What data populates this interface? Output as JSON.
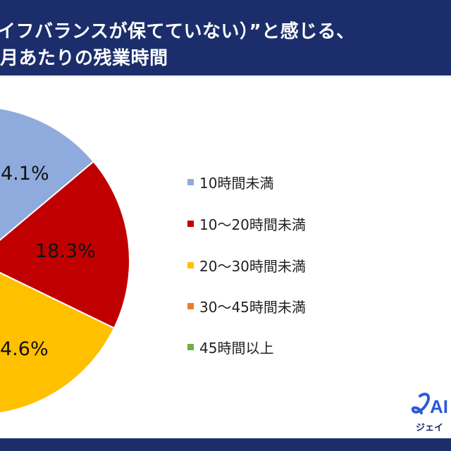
{
  "header": {
    "title_line1": "イフバランスが保てていない）”と感じる、",
    "title_line2": "月あたりの残業時間"
  },
  "chart_data": {
    "type": "pie",
    "visible_slices": [
      {
        "category": "10時間未満",
        "label": "4.1%",
        "color": "#8faadc"
      },
      {
        "category": "10～20時間未満",
        "label": "18.3%",
        "value": 18.3,
        "color": "#c00000"
      },
      {
        "category": "20～30時間未満",
        "label": "4.6%",
        "color": "#ffc000"
      }
    ],
    "legend": [
      {
        "label": "10時間未満",
        "color": "#8faadc"
      },
      {
        "label": "10～20時間未満",
        "color": "#c00000"
      },
      {
        "label": "20～30時間未満",
        "color": "#ffc000"
      },
      {
        "label": "30～45時間未満",
        "color": "#ed7d31"
      },
      {
        "label": "45時間以上",
        "color": "#70ad47"
      }
    ],
    "legend_position": "right"
  },
  "logo": {
    "text": "JAI",
    "sub": "ジェイ"
  }
}
